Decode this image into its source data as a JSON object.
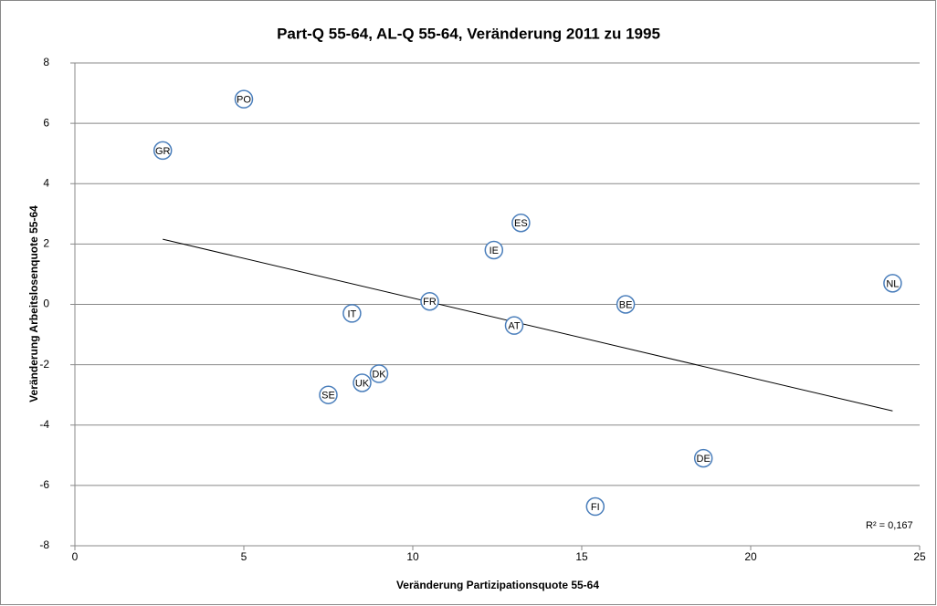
{
  "chart_data": {
    "type": "scatter",
    "title": "Part-Q 55-64, AL-Q 55-64, Veränderung 2011 zu 1995",
    "x_label": "Veränderung Partizipationsquote 55-64",
    "y_label": "Veränderung Arbeitslosenquote 55-64",
    "x": [
      2.6,
      5.0,
      13.2,
      12.4,
      24.2,
      10.5,
      16.3,
      8.2,
      13.0,
      9.0,
      8.5,
      7.5,
      18.6,
      15.4
    ],
    "point_labels": [
      "GR",
      "PO",
      "ES",
      "IE",
      "NL",
      "FR",
      "BE",
      "IT",
      "AT",
      "DK",
      "UK",
      "SE",
      "DE",
      "FI"
    ],
    "series": [
      {
        "color": "#4a7ebb",
        "values": [
          5.1,
          6.8,
          2.7,
          1.8,
          0.7,
          0.1,
          0.0,
          -0.3,
          -0.7,
          -2.3,
          -2.6,
          -3.0,
          -5.1,
          -6.7
        ]
      }
    ],
    "trendline": "linear",
    "trendline_label": "R² = 0,167",
    "xlim": [
      0,
      25
    ],
    "xticks": [
      0,
      5,
      10,
      15,
      20,
      25
    ],
    "ylim": [
      -8,
      8
    ],
    "yticks": [
      -8,
      -6,
      -4,
      -2,
      0,
      2,
      4,
      6,
      8
    ],
    "grid": true
  }
}
